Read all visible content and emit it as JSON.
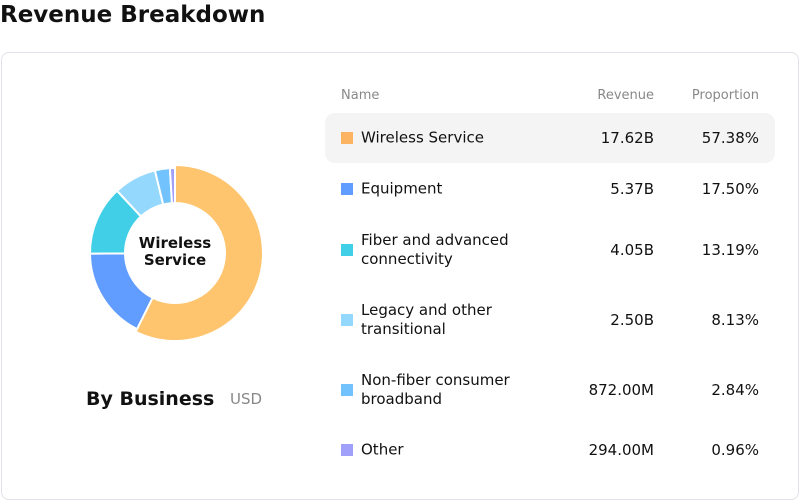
{
  "title": "Revenue Breakdown",
  "chart_data": {
    "type": "pie",
    "subtitle": "By Business",
    "unit": "USD",
    "center_label": "Wireless Service",
    "columns": {
      "name": "Name",
      "revenue": "Revenue",
      "proportion": "Proportion"
    },
    "series": [
      {
        "name": "Wireless Service",
        "revenue": "17.62B",
        "proportion": "57.38%",
        "value": 57.38,
        "color": "#FFC46E",
        "legend_color": "#FDB462"
      },
      {
        "name": "Equipment",
        "revenue": "5.37B",
        "proportion": "17.50%",
        "value": 17.5,
        "color": "#619CFF",
        "legend_color": "#619CFF"
      },
      {
        "name": "Fiber and advanced connectivity",
        "revenue": "4.05B",
        "proportion": "13.19%",
        "value": 13.19,
        "color": "#40CFE6",
        "legend_color": "#40CFE6"
      },
      {
        "name": "Legacy and other transitional",
        "revenue": "2.50B",
        "proportion": "8.13%",
        "value": 8.13,
        "color": "#94D8FD",
        "legend_color": "#94D8FD"
      },
      {
        "name": "Non-fiber consumer broadband",
        "revenue": "872.00M",
        "proportion": "2.84%",
        "value": 2.84,
        "color": "#72C2FD",
        "legend_color": "#72C2FD"
      },
      {
        "name": "Other",
        "revenue": "294.00M",
        "proportion": "0.96%",
        "value": 0.96,
        "color": "#A09FFA",
        "legend_color": "#A09FFA"
      }
    ]
  }
}
